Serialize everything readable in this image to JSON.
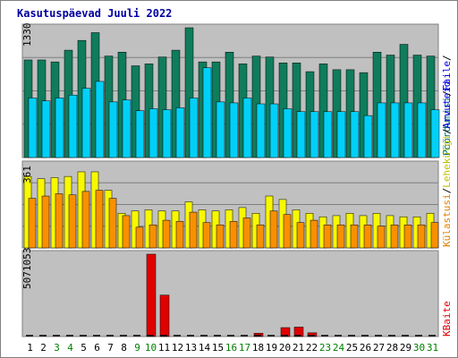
{
  "title": "Kasutuspäevad Juuli 2022",
  "colors": {
    "background": "#ffffff",
    "plot_bg": "#c0c0c0",
    "kulastused": "#0f7c5c",
    "failid": "#00d0f8",
    "lehekulgi": "#f8f800",
    "kulastusi": "#f89000",
    "kbaite": "#e00000",
    "weekday_label": "#000000",
    "weekend_label": "#008000",
    "ylabel_teal": "#007070",
    "ylabel_blue": "#0000e0",
    "ylabel_yellow": "#c0c000",
    "ylabel_orange": "#e08000",
    "ylabel_red": "#e00000"
  },
  "chart_data": [
    {
      "type": "bar",
      "panel": "top",
      "max_label": "1330",
      "ylim": [
        0,
        1330
      ],
      "grid": true,
      "categories": [
        "1",
        "2",
        "3",
        "4",
        "5",
        "6",
        "7",
        "8",
        "9",
        "10",
        "11",
        "12",
        "13",
        "14",
        "15",
        "16",
        "17",
        "18",
        "19",
        "20",
        "21",
        "22",
        "23",
        "24",
        "25",
        "26",
        "27",
        "28",
        "29",
        "30",
        "31"
      ],
      "weekend": [
        false,
        false,
        true,
        true,
        false,
        false,
        false,
        false,
        true,
        true,
        false,
        false,
        false,
        false,
        false,
        true,
        true,
        false,
        false,
        false,
        false,
        false,
        true,
        true,
        false,
        false,
        false,
        false,
        false,
        true,
        true
      ],
      "series": [
        {
          "name": "Pöördumisi",
          "values": [
            1000,
            1000,
            980,
            1100,
            1200,
            1280,
            1040,
            1080,
            940,
            960,
            1030,
            1100,
            1330,
            980,
            980,
            1080,
            960,
            1040,
            1030,
            970,
            970,
            880,
            960,
            900,
            900,
            870,
            1080,
            1050,
            1160,
            1050,
            1040
          ]
        },
        {
          "name": "Faile",
          "values": [
            610,
            580,
            610,
            640,
            710,
            780,
            570,
            590,
            480,
            500,
            490,
            510,
            610,
            920,
            570,
            560,
            610,
            550,
            550,
            500,
            470,
            470,
            470,
            470,
            470,
            430,
            560,
            560,
            560,
            560,
            490
          ]
        }
      ]
    },
    {
      "type": "bar",
      "panel": "middle",
      "max_label": "361",
      "ylim": [
        0,
        361
      ],
      "grid": true,
      "categories": [
        "1",
        "2",
        "3",
        "4",
        "5",
        "6",
        "7",
        "8",
        "9",
        "10",
        "11",
        "12",
        "13",
        "14",
        "15",
        "16",
        "17",
        "18",
        "19",
        "20",
        "21",
        "22",
        "23",
        "24",
        "25",
        "26",
        "27",
        "28",
        "29",
        "30",
        "31"
      ],
      "series": [
        {
          "name": "Lehekülgi",
          "values": [
            310,
            300,
            305,
            310,
            330,
            330,
            250,
            150,
            160,
            165,
            160,
            160,
            200,
            165,
            160,
            165,
            175,
            150,
            225,
            210,
            165,
            150,
            135,
            140,
            150,
            140,
            150,
            140,
            135,
            135,
            150
          ]
        },
        {
          "name": "Külastusi",
          "values": [
            215,
            225,
            235,
            230,
            245,
            250,
            215,
            140,
            90,
            100,
            120,
            115,
            155,
            110,
            100,
            115,
            130,
            100,
            160,
            145,
            110,
            120,
            100,
            100,
            100,
            100,
            95,
            100,
            100,
            100,
            110
          ]
        }
      ]
    },
    {
      "type": "bar",
      "panel": "bottom",
      "max_label": "5071053",
      "ylim": [
        0,
        5071053
      ],
      "grid": false,
      "categories": [
        "1",
        "2",
        "3",
        "4",
        "5",
        "6",
        "7",
        "8",
        "9",
        "10",
        "11",
        "12",
        "13",
        "14",
        "15",
        "16",
        "17",
        "18",
        "19",
        "20",
        "21",
        "22",
        "23",
        "24",
        "25",
        "26",
        "27",
        "28",
        "29",
        "30",
        "31"
      ],
      "series": [
        {
          "name": "KBaite",
          "values": [
            0,
            0,
            0,
            0,
            0,
            0,
            0,
            0,
            0,
            5071053,
            2550000,
            0,
            0,
            0,
            0,
            0,
            0,
            200000,
            0,
            550000,
            580000,
            230000,
            0,
            0,
            0,
            0,
            0,
            0,
            0,
            0,
            0
          ]
        }
      ]
    }
  ],
  "right_labels": {
    "top": [
      "Pöördumisi",
      "/",
      "Faile",
      "/"
    ],
    "middle": [
      "Külastusi",
      "/",
      "Lehekülgi",
      "/",
      "Arvuteid"
    ],
    "bottom": [
      "KBaite"
    ]
  }
}
